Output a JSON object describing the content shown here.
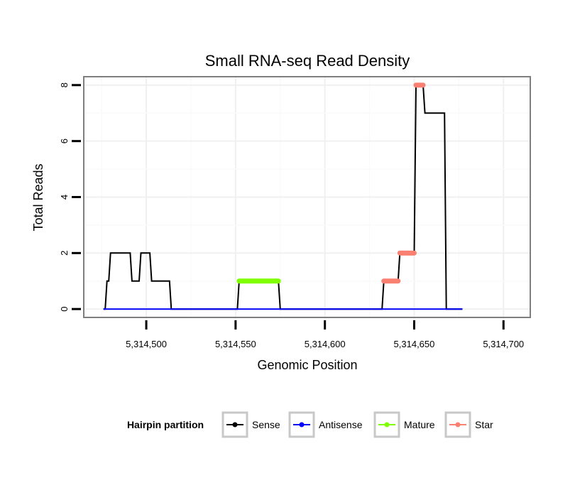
{
  "chart_data": {
    "type": "line",
    "title": "Small RNA-seq Read Density",
    "xlabel": "Genomic Position",
    "ylabel": "Total Reads",
    "xlim": [
      5314465,
      5314715
    ],
    "ylim": [
      -0.3,
      8.3
    ],
    "xticks": [
      5314500,
      5314550,
      5314600,
      5314650,
      5314700
    ],
    "xtick_labels": [
      "5,314,500",
      "5,314,550",
      "5,314,600",
      "5,314,650",
      "5,314,700"
    ],
    "yticks": [
      0,
      2,
      4,
      6,
      8
    ],
    "ytick_labels": [
      "0",
      "2",
      "4",
      "6",
      "8"
    ],
    "grid": true,
    "legend_position": "bottom",
    "legend_title": "Hairpin partition",
    "colors": {
      "Sense": "#000000",
      "Antisense": "#0000ff",
      "Mature": "#7fff00",
      "Star": "#fa8072"
    },
    "series": [
      {
        "name": "Sense",
        "style": "line",
        "points": [
          [
            5314476,
            0
          ],
          [
            5314477,
            0
          ],
          [
            5314478,
            1
          ],
          [
            5314479,
            1
          ],
          [
            5314480,
            2
          ],
          [
            5314491,
            2
          ],
          [
            5314492,
            1
          ],
          [
            5314496,
            1
          ],
          [
            5314497,
            2
          ],
          [
            5314502,
            2
          ],
          [
            5314503,
            1
          ],
          [
            5314513,
            1
          ],
          [
            5314514,
            0
          ],
          [
            5314551,
            0
          ],
          [
            5314552,
            1
          ],
          [
            5314574,
            1
          ],
          [
            5314575,
            0
          ],
          [
            5314632,
            0
          ],
          [
            5314633,
            1
          ],
          [
            5314641,
            1
          ],
          [
            5314642,
            2
          ],
          [
            5314650,
            2
          ],
          [
            5314651,
            8
          ],
          [
            5314655,
            8
          ],
          [
            5314656,
            7
          ],
          [
            5314667,
            7
          ],
          [
            5314668,
            0
          ],
          [
            5314677,
            0
          ]
        ]
      },
      {
        "name": "Antisense",
        "style": "line",
        "points": [
          [
            5314476,
            0
          ],
          [
            5314677,
            0
          ]
        ]
      },
      {
        "name": "Mature",
        "style": "segment",
        "points": [
          [
            5314552,
            1
          ],
          [
            5314574,
            1
          ]
        ]
      },
      {
        "name": "Star",
        "style": "segment",
        "segments": [
          [
            [
              5314633,
              1
            ],
            [
              5314641,
              1
            ]
          ],
          [
            [
              5314642,
              2
            ],
            [
              5314650,
              2
            ]
          ],
          [
            [
              5314651,
              8
            ],
            [
              5314655,
              8
            ]
          ]
        ]
      }
    ],
    "legend_entries": [
      "Sense",
      "Antisense",
      "Mature",
      "Star"
    ]
  }
}
